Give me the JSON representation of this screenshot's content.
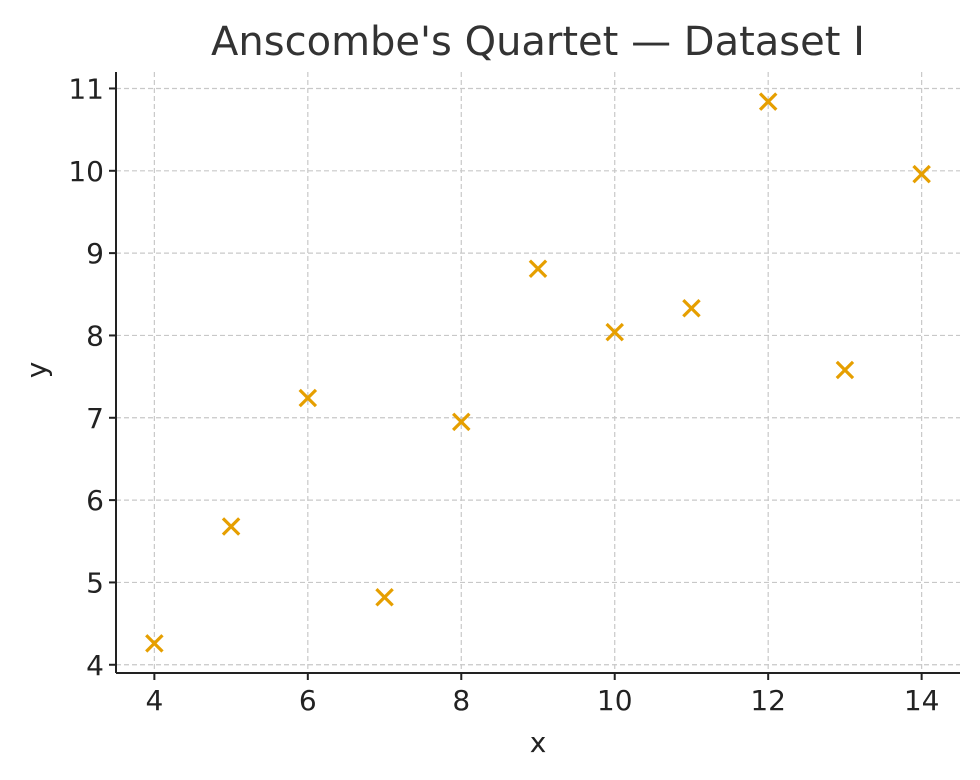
{
  "chart_data": {
    "type": "scatter",
    "title": "Anscombe's Quartet — Dataset I",
    "xlabel": "x",
    "ylabel": "y",
    "xlim": [
      3.5,
      14.5
    ],
    "ylim": [
      3.9,
      11.2
    ],
    "xticks": [
      4,
      6,
      8,
      10,
      12,
      14
    ],
    "yticks": [
      4,
      5,
      6,
      7,
      8,
      9,
      10,
      11
    ],
    "grid": true,
    "marker": "x",
    "color": "#E69F00",
    "series": [
      {
        "x": [
          4,
          5,
          6,
          7,
          8,
          9,
          10,
          11,
          12,
          13,
          14
        ],
        "y": [
          4.26,
          5.68,
          7.24,
          4.82,
          6.95,
          8.81,
          8.04,
          8.33,
          10.84,
          7.58,
          9.96
        ]
      }
    ]
  }
}
